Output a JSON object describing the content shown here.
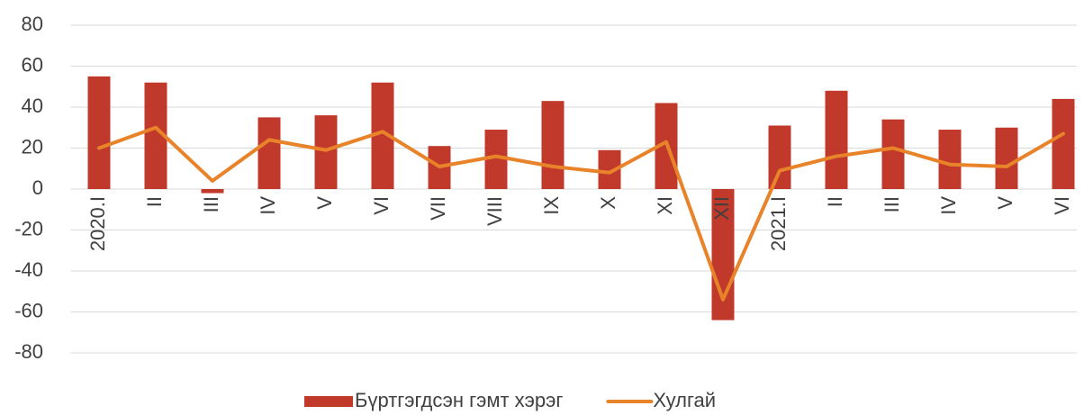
{
  "chart_data": {
    "type": "bar_line",
    "categories": [
      "2020.I",
      "II",
      "III",
      "IV",
      "V",
      "VI",
      "VII",
      "VIII",
      "IX",
      "X",
      "XI",
      "XII",
      "2021.I",
      "II",
      "III",
      "IV",
      "V",
      "VI"
    ],
    "series": [
      {
        "name": "Бүртгэгдсэн гэмт хэрэг",
        "type": "bar",
        "color": "#c0392b",
        "values": [
          55,
          52,
          -2,
          35,
          36,
          52,
          21,
          29,
          43,
          19,
          42,
          -64,
          31,
          48,
          34,
          29,
          30,
          44
        ]
      },
      {
        "name": "Хулгай",
        "type": "line",
        "color": "#e8832a",
        "values": [
          20,
          30,
          4,
          24,
          19,
          28,
          11,
          16,
          11,
          8,
          23,
          -54,
          9,
          16,
          20,
          12,
          11,
          27
        ]
      }
    ],
    "ylim": [
      -80,
      80
    ],
    "yticks": [
      -80,
      -60,
      -40,
      -20,
      0,
      20,
      40,
      60,
      80
    ],
    "grid": true,
    "legend": "bottom"
  }
}
